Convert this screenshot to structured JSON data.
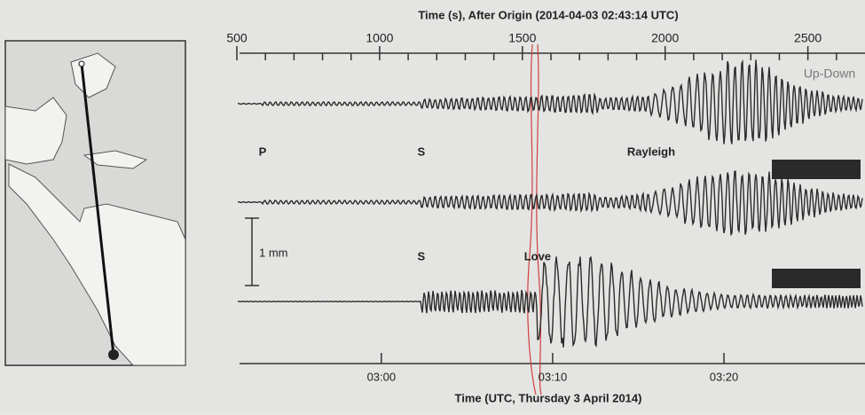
{
  "chart_data": {
    "type": "seismogram",
    "title": "Time (s), After Origin (2014-04-03 02:43:14 UTC)",
    "xlabel": "Time (UTC, Thursday 3 April 2014)",
    "trace_label": "Up-Down",
    "scale_label": "1 mm",
    "xlim": [
      500,
      2700
    ],
    "xticks": [
      500,
      1000,
      1500,
      2000,
      2500
    ],
    "minor_xticks": [
      600,
      700,
      800,
      900,
      1100,
      1200,
      1300,
      1400,
      1600,
      1700,
      1800,
      1900,
      2100,
      2200,
      2300,
      2400,
      2600
    ],
    "bottom_xticks": [
      {
        "value": 1006,
        "label": "03:00"
      },
      {
        "value": 1606,
        "label": "03:10"
      },
      {
        "value": 2206,
        "label": "03:20"
      }
    ],
    "annotation_rows": [
      [
        {
          "text": "P",
          "x": 590
        },
        {
          "text": "S",
          "x": 1146
        },
        {
          "text": "Rayleigh",
          "x": 1951
        }
      ],
      [
        {
          "text": "S",
          "x": 1146
        },
        {
          "text": "Love",
          "x": 1553
        }
      ]
    ],
    "color": "#2b2b2b"
  }
}
